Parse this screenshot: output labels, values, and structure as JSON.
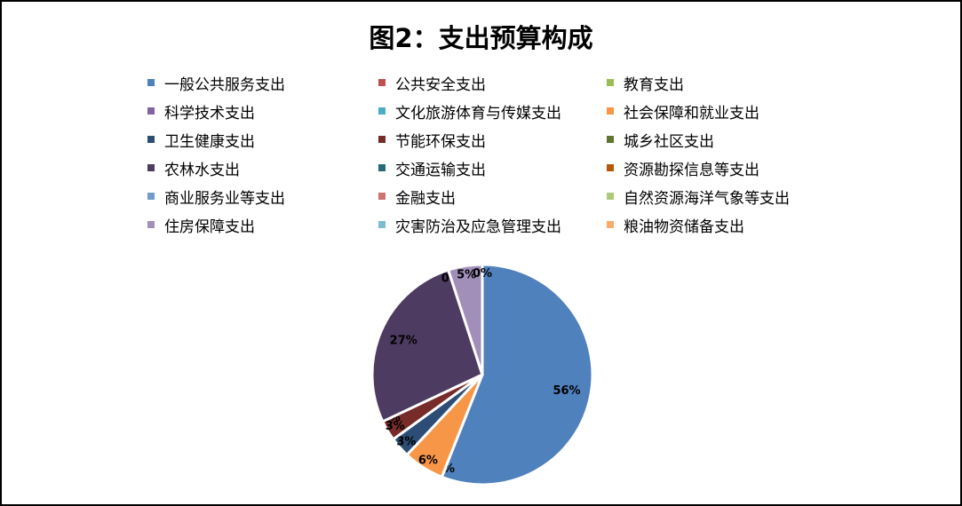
{
  "chart_data": {
    "type": "pie",
    "title": "图2：支出预算构成",
    "legend_position": "top",
    "series": [
      {
        "label": "一般公共服务支出",
        "value": 56,
        "display": "56%",
        "color": "#4F81BD"
      },
      {
        "label": "公共安全支出",
        "value": 0,
        "display": "",
        "color": "#C0504D"
      },
      {
        "label": "教育支出",
        "value": 0,
        "display": "",
        "color": "#9BBB59"
      },
      {
        "label": "科学技术支出",
        "value": 0,
        "display": "",
        "color": "#8064A2"
      },
      {
        "label": "文化旅游体育与传媒支出",
        "value": 0,
        "display": "0%",
        "color": "#4BACC6"
      },
      {
        "label": "社会保障和就业支出",
        "value": 6,
        "display": "6%",
        "color": "#F79646"
      },
      {
        "label": "卫生健康支出",
        "value": 3,
        "display": "3%",
        "color": "#2C4D75"
      },
      {
        "label": "节能环保支出",
        "value": 3,
        "display": "3%",
        "color": "#772C2A"
      },
      {
        "label": "城乡社区支出",
        "value": 0,
        "display": "0%",
        "color": "#5F7530"
      },
      {
        "label": "农林水支出",
        "value": 27,
        "display": "27%",
        "color": "#4D3B62"
      },
      {
        "label": "交通运输支出",
        "value": 0,
        "display": "",
        "color": "#276A7C"
      },
      {
        "label": "资源勘探信息等支出",
        "value": 0,
        "display": "",
        "color": "#B65708"
      },
      {
        "label": "商业服务业等支出",
        "value": 0,
        "display": "",
        "color": "#729ACA"
      },
      {
        "label": "金融支出",
        "value": 0,
        "display": "",
        "color": "#CD7371"
      },
      {
        "label": "自然资源海洋气象等支出",
        "value": 0,
        "display": "0%",
        "color": "#AFC97A"
      },
      {
        "label": "住房保障支出",
        "value": 5,
        "display": "5%",
        "color": "#A18FBA"
      },
      {
        "label": "灾害防治及应急管理支出",
        "value": 0,
        "display": "",
        "color": "#7BBDCF"
      },
      {
        "label": "粮油物资储备支出",
        "value": 0,
        "display": "0%",
        "color": "#F9AB6B"
      }
    ]
  }
}
